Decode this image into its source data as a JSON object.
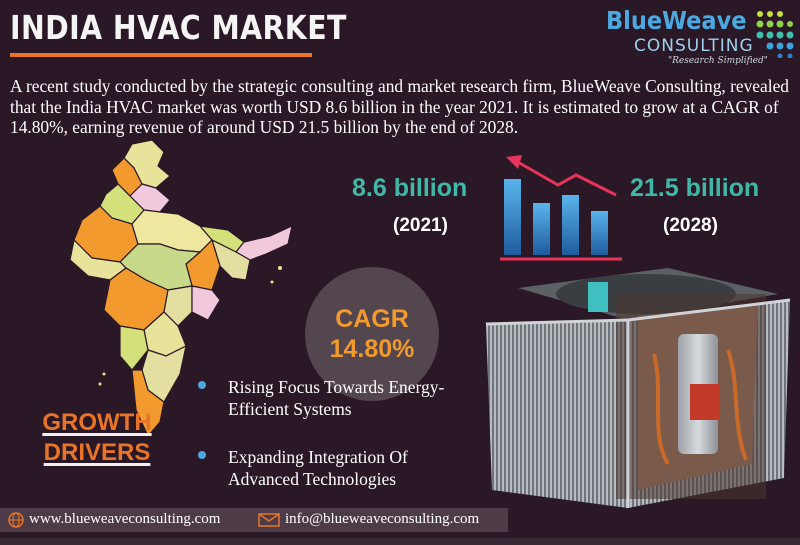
{
  "header": {
    "title": "INDIA HVAC MARKET"
  },
  "logo": {
    "brand": "BlueWeave",
    "sub": "CONSULTING",
    "tagline": "\"Research Simplified\""
  },
  "intro": "A recent study conducted by the strategic consulting and market research firm, BlueWeave Consulting, revealed that the India HVAC market was worth USD 8.6 billion in the year 2021. It is estimated to grow at a CAGR of 14.80%, earning revenue of around USD 21.5 billion by the end of 2028.",
  "stats": {
    "value_start": "8.6 billion",
    "year_start": "(2021)",
    "value_end": "21.5 billion",
    "year_end": "(2028)"
  },
  "cagr": {
    "label": "CAGR",
    "value": "14.80%"
  },
  "growth": {
    "line1": "GROWTH",
    "line2": "DRIVERS"
  },
  "drivers": [
    "Rising Focus Towards Energy-Efficient Systems",
    "Expanding Integration Of Advanced Technologies"
  ],
  "footer": {
    "website": "www.blueweaveconsulting.com",
    "email": "info@blueweaveconsulting.com"
  },
  "colors": {
    "background": "#2a1826",
    "accent": "#e8742a",
    "teal": "#41b8a7",
    "blue": "#4ea7e0",
    "cagr_text": "#f29a2e"
  },
  "icons": [
    "globe-icon",
    "envelope-icon",
    "trend-chart-icon",
    "india-map-icon",
    "ac-unit-icon"
  ]
}
